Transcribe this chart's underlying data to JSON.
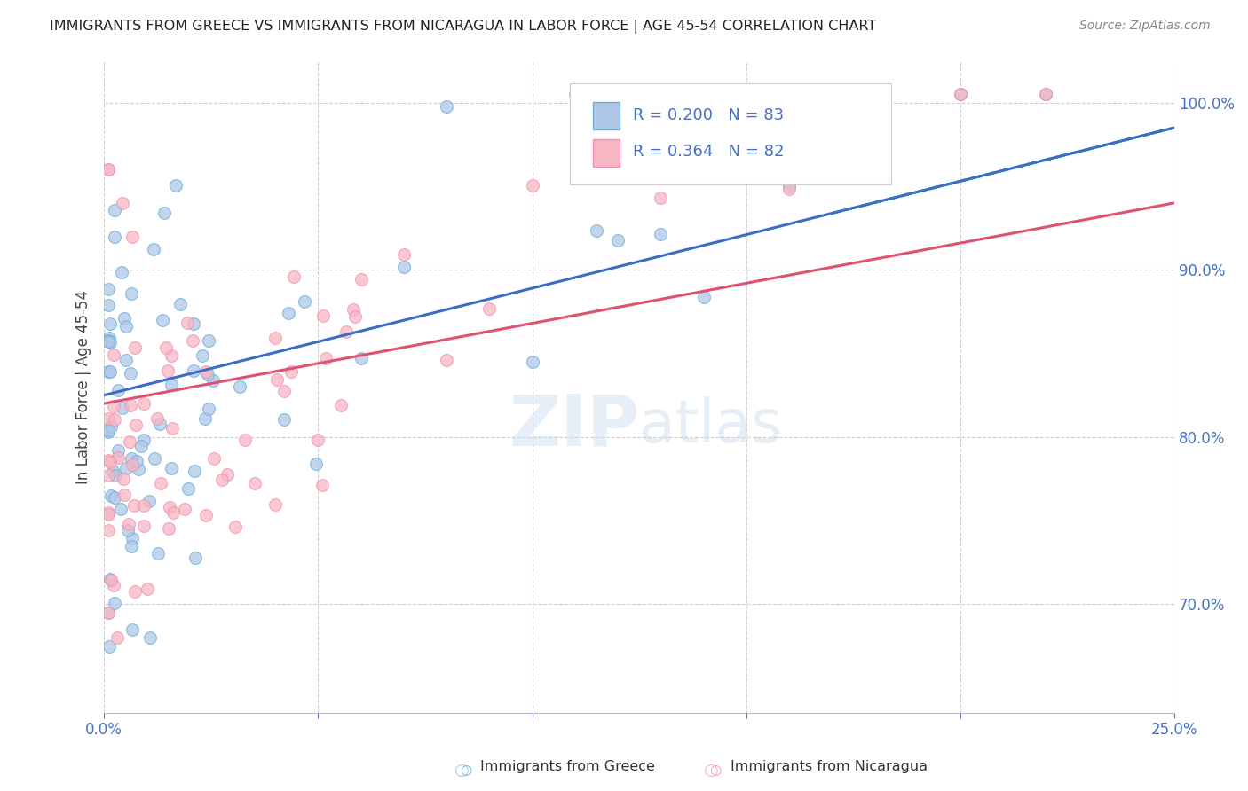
{
  "title": "IMMIGRANTS FROM GREECE VS IMMIGRANTS FROM NICARAGUA IN LABOR FORCE | AGE 45-54 CORRELATION CHART",
  "source": "Source: ZipAtlas.com",
  "ylabel": "In Labor Force | Age 45-54",
  "xlim": [
    0.0,
    0.25
  ],
  "ylim": [
    0.635,
    1.025
  ],
  "yticks": [
    0.7,
    0.8,
    0.9,
    1.0
  ],
  "ytick_labels": [
    "70.0%",
    "80.0%",
    "90.0%",
    "100.0%"
  ],
  "xticks": [
    0.0,
    0.05,
    0.1,
    0.15,
    0.2,
    0.25
  ],
  "xtick_labels": [
    "0.0%",
    "",
    "",
    "",
    "",
    "25.0%"
  ],
  "legend_r1": "0.200",
  "legend_n1": "83",
  "legend_r2": "0.364",
  "legend_n2": "82",
  "color_greece_fill": "#aec7e8",
  "color_greece_edge": "#6baed6",
  "color_nicaragua_fill": "#f7b6c2",
  "color_nicaragua_edge": "#f48fb1",
  "color_trendline_greece": "#3a6dc5",
  "color_trendline_nicaragua": "#e05070",
  "color_axis_text": "#4472C4",
  "color_title": "#222222",
  "color_grid": "#d0d0d0",
  "watermark_zip": "ZIP",
  "watermark_atlas": "atlas",
  "greece_seed": 42,
  "nicaragua_seed": 99
}
